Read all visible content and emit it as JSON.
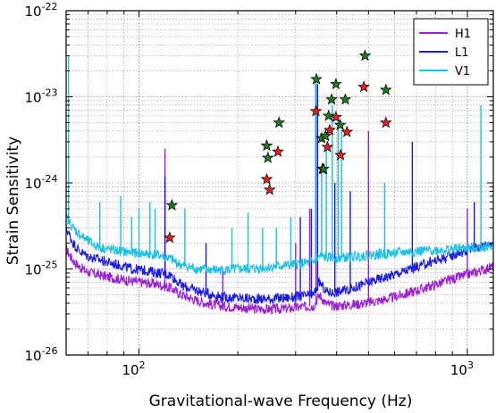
{
  "chart_data": {
    "type": "line",
    "xlabel": "Gravitational-wave Frequency (Hz)",
    "ylabel": "Strain Sensitivity",
    "xscale": "log",
    "yscale": "log",
    "xlim": [
      60,
      1200
    ],
    "ylim": [
      1e-26,
      1e-22
    ],
    "grid": true,
    "legend_position": "top-right",
    "x_ticks": [
      {
        "value": 100,
        "base": "10",
        "exp": "2"
      },
      {
        "value": 1000,
        "base": "10",
        "exp": "3"
      }
    ],
    "y_ticks": [
      {
        "value": 1e-26,
        "base": "10",
        "exp": "-26"
      },
      {
        "value": 1e-25,
        "base": "10",
        "exp": "-25"
      },
      {
        "value": 1e-24,
        "base": "10",
        "exp": "-24"
      },
      {
        "value": 1e-23,
        "base": "10",
        "exp": "-23"
      },
      {
        "value": 1e-22,
        "base": "10",
        "exp": "-22"
      }
    ],
    "series": [
      {
        "name": "H1",
        "color": "#9b1fd6",
        "x": [
          60,
          63,
          66,
          70,
          75,
          80,
          88,
          95,
          105,
          115,
          125,
          135,
          150,
          165,
          180,
          200,
          220,
          250,
          280,
          310,
          340,
          355,
          370,
          390,
          420,
          460,
          500,
          560,
          620,
          700,
          800,
          900,
          1000,
          1100,
          1200
        ],
        "y": [
          1.7e-25,
          1.25e-25,
          1.05e-25,
          9.2e-26,
          8.6e-26,
          8.1e-26,
          7.6e-26,
          7.2e-26,
          6.9e-26,
          6.6e-26,
          6e-26,
          5e-26,
          4.3e-26,
          3.9e-26,
          3.7e-26,
          3.6e-26,
          3.45e-26,
          3.4e-26,
          3.45e-26,
          3.6e-26,
          3.7e-26,
          5e-26,
          4e-26,
          3.7e-26,
          3.8e-26,
          3.9e-26,
          4.1e-26,
          4.4e-26,
          4.9e-26,
          5.6e-26,
          6.6e-26,
          7.6e-26,
          8.6e-26,
          9.6e-26,
          1.07e-25
        ],
        "peaks": [
          {
            "x": 120,
            "y": 2.5e-24
          },
          {
            "x": 180,
            "y": 1e-25
          },
          {
            "x": 300,
            "y": 2e-25
          },
          {
            "x": 331,
            "y": 5e-25
          },
          {
            "x": 346,
            "y": 1.7e-23
          },
          {
            "x": 500,
            "y": 4e-24
          },
          {
            "x": 1000,
            "y": 5e-25
          }
        ]
      },
      {
        "name": "L1",
        "color": "#1919e6",
        "x": [
          60,
          63,
          66,
          70,
          75,
          80,
          88,
          95,
          105,
          115,
          125,
          135,
          150,
          165,
          180,
          200,
          220,
          250,
          280,
          310,
          340,
          355,
          370,
          390,
          420,
          460,
          500,
          560,
          620,
          700,
          800,
          900,
          1000,
          1100,
          1200
        ],
        "y": [
          3e-25,
          2e-25,
          1.6e-25,
          1.4e-25,
          1.3e-25,
          1.2e-25,
          1.1e-25,
          1e-25,
          9.6e-26,
          9e-26,
          8.5e-26,
          6.4e-26,
          5.6e-26,
          5.1e-26,
          4.7e-26,
          4.6e-26,
          4.5e-26,
          4.5e-26,
          4.6e-26,
          4.8e-26,
          5e-26,
          7e-26,
          5.5e-26,
          5.3e-26,
          5.6e-26,
          6.2e-26,
          7e-26,
          8e-26,
          9e-26,
          1.05e-25,
          1.25e-25,
          1.45e-25,
          1.65e-25,
          1.85e-25,
          2.05e-25
        ],
        "peaks": [
          {
            "x": 120,
            "y": 1.2e-24
          },
          {
            "x": 160,
            "y": 2e-25
          },
          {
            "x": 310,
            "y": 4e-25
          },
          {
            "x": 335,
            "y": 5e-25
          },
          {
            "x": 350,
            "y": 1.4e-23
          },
          {
            "x": 395,
            "y": 1e-24
          },
          {
            "x": 440,
            "y": 8e-25
          },
          {
            "x": 680,
            "y": 3e-24
          },
          {
            "x": 1050,
            "y": 6e-25
          }
        ]
      },
      {
        "name": "V1",
        "color": "#1bbfe8",
        "x": [
          60,
          63,
          66,
          70,
          75,
          80,
          88,
          95,
          105,
          115,
          125,
          135,
          150,
          165,
          180,
          200,
          220,
          250,
          280,
          310,
          340,
          355,
          370,
          390,
          420,
          460,
          500,
          560,
          620,
          700,
          800,
          900,
          1000,
          1100,
          1200
        ],
        "y": [
          4e-25,
          3e-25,
          2.5e-25,
          2.1e-25,
          1.8e-25,
          1.7e-25,
          1.6e-25,
          1.55e-25,
          1.5e-25,
          1.45e-25,
          1.3e-25,
          1.1e-25,
          1e-25,
          9.8e-26,
          9.7e-26,
          1e-25,
          1e-25,
          1.05e-25,
          1.1e-25,
          1.15e-25,
          1.2e-25,
          1.4e-25,
          1.35e-25,
          1.35e-25,
          1.35e-25,
          1.4e-25,
          1.45e-25,
          1.5e-25,
          1.55e-25,
          1.6e-25,
          1.65e-25,
          1.7e-25,
          1.75e-25,
          1.8e-25,
          1.85e-25
        ],
        "peaks": [
          {
            "x": 61,
            "y": 3e-23
          },
          {
            "x": 76,
            "y": 6e-25
          },
          {
            "x": 88,
            "y": 7e-25
          },
          {
            "x": 95,
            "y": 4e-25
          },
          {
            "x": 100,
            "y": 5e-25
          },
          {
            "x": 108,
            "y": 6e-25
          },
          {
            "x": 112,
            "y": 5e-25
          },
          {
            "x": 138,
            "y": 5e-25
          },
          {
            "x": 192,
            "y": 3e-25
          },
          {
            "x": 215,
            "y": 4.5e-25
          },
          {
            "x": 238,
            "y": 3e-25
          },
          {
            "x": 262,
            "y": 3e-25
          },
          {
            "x": 290,
            "y": 4e-25
          },
          {
            "x": 345,
            "y": 1.6e-23
          },
          {
            "x": 360,
            "y": 1.5e-24
          },
          {
            "x": 372,
            "y": 2.5e-24
          },
          {
            "x": 388,
            "y": 8e-24
          },
          {
            "x": 404,
            "y": 6e-24
          },
          {
            "x": 414,
            "y": 4e-24
          },
          {
            "x": 560,
            "y": 1e-24
          },
          {
            "x": 1100,
            "y": 8e-24
          }
        ]
      }
    ],
    "markers": [
      {
        "name": "red",
        "color": "#e8201c",
        "points": [
          {
            "x": 124,
            "y": 2.3e-25
          },
          {
            "x": 245,
            "y": 1.1e-24
          },
          {
            "x": 250,
            "y": 8.3e-25
          },
          {
            "x": 265,
            "y": 2.3e-24
          },
          {
            "x": 346,
            "y": 6.8e-24
          },
          {
            "x": 362,
            "y": 1.45e-24
          },
          {
            "x": 375,
            "y": 2.6e-24
          },
          {
            "x": 381,
            "y": 4.1e-24
          },
          {
            "x": 398,
            "y": 5.8e-24
          },
          {
            "x": 411,
            "y": 2.1e-24
          },
          {
            "x": 430,
            "y": 3.9e-24
          },
          {
            "x": 484,
            "y": 1.3e-23
          },
          {
            "x": 565,
            "y": 5e-24
          }
        ]
      },
      {
        "name": "green",
        "color": "#1e7a1e",
        "points": [
          {
            "x": 126,
            "y": 5.5e-25
          },
          {
            "x": 245,
            "y": 2.7e-24
          },
          {
            "x": 247,
            "y": 1.95e-24
          },
          {
            "x": 267,
            "y": 5e-24
          },
          {
            "x": 347,
            "y": 1.6e-23
          },
          {
            "x": 360,
            "y": 3.3e-24
          },
          {
            "x": 365,
            "y": 1.45e-24
          },
          {
            "x": 370,
            "y": 3.5e-24
          },
          {
            "x": 378,
            "y": 6e-24
          },
          {
            "x": 386,
            "y": 9.3e-24
          },
          {
            "x": 398,
            "y": 1.4e-23
          },
          {
            "x": 410,
            "y": 4.7e-24
          },
          {
            "x": 425,
            "y": 9.3e-24
          },
          {
            "x": 488,
            "y": 3e-23
          },
          {
            "x": 565,
            "y": 1.2e-23
          }
        ]
      }
    ]
  }
}
